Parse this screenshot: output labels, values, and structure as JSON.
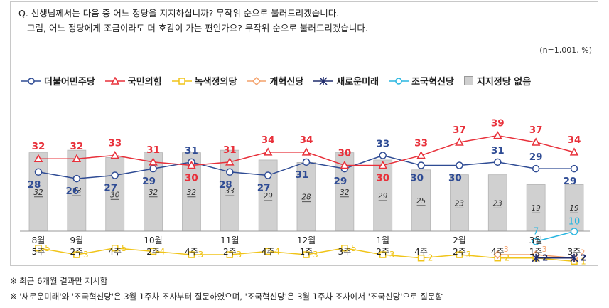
{
  "question": {
    "line1": "Q. 선생님께서는 다음 중 어느 정당을 지지하십니까? 무작위 순으로 불러드리겠습니다.",
    "line2": "그럼, 어느 정당에게 조금이라도 더 호감이 가는 편인가요? 무작위 순으로 불러드리겠습니다."
  },
  "unit_note": "(n=1,001, %)",
  "notes": [
    "※ 최근 6개월 결과만 제시함",
    "※ '새로운미래'와 '조국혁신당'은 3월 1주차 조사부터 질문하였으며, '조국혁신당'은 3월 1주차 조사에서 '조국신당'으로 질문함"
  ],
  "chart_data": {
    "type": "line",
    "categories": [
      "8월 5주",
      "9월 2주",
      "4주",
      "10월 2주",
      "4주",
      "11월 2주",
      "4주",
      "12월 1주",
      "3주",
      "1월 2주",
      "4주",
      "2월 2주",
      "4주",
      "3월 1주",
      "3주"
    ],
    "category_lines": [
      [
        "8월",
        "5주"
      ],
      [
        "9월",
        "2주"
      ],
      [
        "",
        "4주"
      ],
      [
        "10월",
        "2주"
      ],
      [
        "",
        "4주"
      ],
      [
        "11월",
        "2주"
      ],
      [
        "",
        "4주"
      ],
      [
        "12월",
        "1주"
      ],
      [
        "",
        "3주"
      ],
      [
        "1월",
        "2주"
      ],
      [
        "",
        "4주"
      ],
      [
        "2월",
        "2주"
      ],
      [
        "",
        "4주"
      ],
      [
        "3월",
        "1주"
      ],
      [
        "",
        "3주"
      ]
    ],
    "ylim": [
      0,
      45
    ],
    "series": [
      {
        "name": "더불어민주당",
        "color": "#2e4b94",
        "marker": "circle",
        "values": [
          28,
          26,
          27,
          29,
          31,
          28,
          27,
          31,
          29,
          33,
          30,
          30,
          31,
          29,
          29
        ]
      },
      {
        "name": "국민의힘",
        "color": "#e8303a",
        "marker": "triangle",
        "values": [
          32,
          32,
          33,
          31,
          30,
          31,
          34,
          34,
          30,
          30,
          33,
          37,
          39,
          37,
          34
        ]
      },
      {
        "name": "녹색정의당",
        "color": "#f0c419",
        "marker": "square",
        "values": [
          5,
          3,
          5,
          4,
          3,
          3,
          4,
          3,
          5,
          3,
          2,
          3,
          2,
          2,
          1
        ]
      },
      {
        "name": "개혁신당",
        "color": "#f4a26c",
        "marker": "diamond",
        "values": [
          null,
          null,
          null,
          null,
          null,
          null,
          null,
          null,
          null,
          null,
          null,
          null,
          3,
          3,
          2
        ]
      },
      {
        "name": "새로운미래",
        "color": "#1f2b6b",
        "marker": "star",
        "values": [
          null,
          null,
          null,
          null,
          null,
          null,
          null,
          null,
          null,
          null,
          null,
          null,
          null,
          2,
          2
        ]
      },
      {
        "name": "조국혁신당",
        "color": "#29b6e0",
        "marker": "circle-open",
        "values": [
          null,
          null,
          null,
          null,
          null,
          null,
          null,
          null,
          null,
          null,
          null,
          null,
          null,
          7,
          10
        ]
      }
    ],
    "bars": {
      "name": "지지정당 없음",
      "color": "#d0d0d0",
      "values": [
        32,
        33,
        30,
        32,
        32,
        33,
        29,
        28,
        32,
        29,
        25,
        23,
        23,
        19,
        19
      ]
    }
  }
}
